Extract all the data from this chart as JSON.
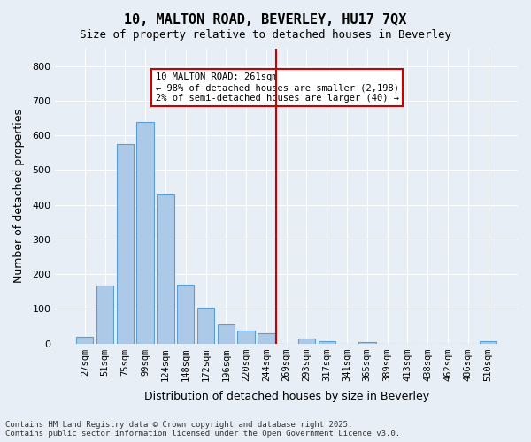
{
  "title": "10, MALTON ROAD, BEVERLEY, HU17 7QX",
  "subtitle": "Size of property relative to detached houses in Beverley",
  "xlabel": "Distribution of detached houses by size in Beverley",
  "ylabel": "Number of detached properties",
  "categories": [
    "27sqm",
    "51sqm",
    "75sqm",
    "99sqm",
    "124sqm",
    "148sqm",
    "172sqm",
    "196sqm",
    "220sqm",
    "244sqm",
    "269sqm",
    "293sqm",
    "317sqm",
    "341sqm",
    "365sqm",
    "389sqm",
    "413sqm",
    "438sqm",
    "462sqm",
    "486sqm",
    "510sqm"
  ],
  "values": [
    18,
    168,
    576,
    638,
    430,
    170,
    103,
    55,
    38,
    30,
    0,
    13,
    7,
    0,
    5,
    0,
    0,
    0,
    0,
    0,
    7
  ],
  "bar_color": "#adc9e8",
  "bar_edge_color": "#5a9fd4",
  "vline_x": 9.5,
  "vline_color": "#cc0000",
  "annotation_text": "10 MALTON ROAD: 261sqm\n← 98% of detached houses are smaller (2,198)\n2% of semi-detached houses are larger (40) →",
  "annotation_box_color": "#cc0000",
  "ylim": [
    0,
    850
  ],
  "yticks": [
    0,
    100,
    200,
    300,
    400,
    500,
    600,
    700,
    800
  ],
  "background_color": "#e8eef5",
  "grid_color": "#ffffff",
  "footer": "Contains HM Land Registry data © Crown copyright and database right 2025.\nContains public sector information licensed under the Open Government Licence v3.0."
}
